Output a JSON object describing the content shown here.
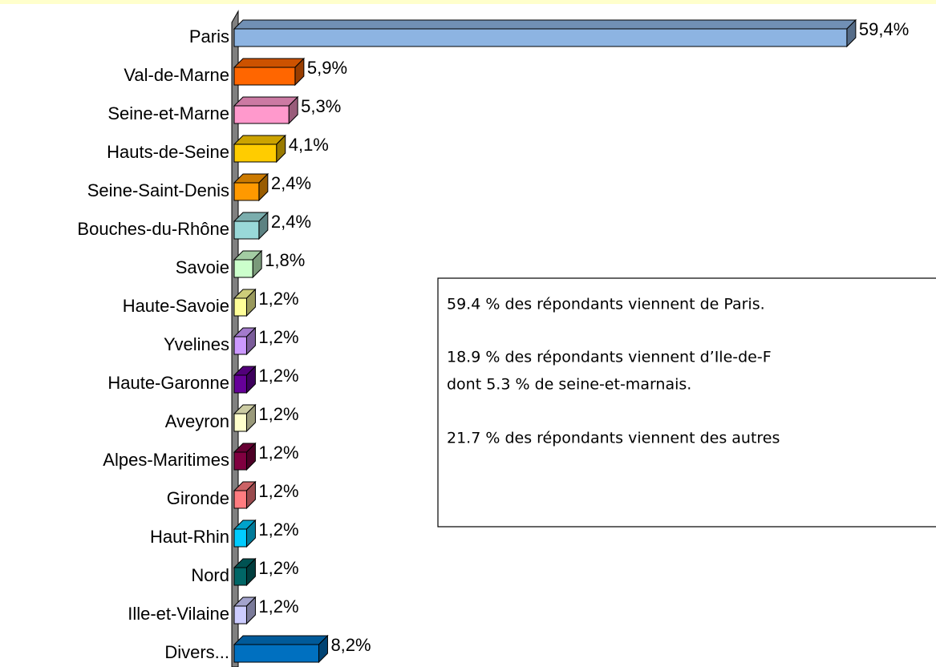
{
  "chart_data": {
    "type": "bar3d-horizontal",
    "categories": [
      "Paris",
      "Val-de-Marne",
      "Seine-et-Marne",
      "Hauts-de-Seine",
      "Seine-Saint-Denis",
      "Bouches-du-Rhône",
      "Savoie",
      "Haute-Savoie",
      "Yvelines",
      "Haute-Garonne",
      "Aveyron",
      "Alpes-Maritimes",
      "Gironde",
      "Haut-Rhin",
      "Nord",
      "Ille-et-Vilaine",
      "Divers..."
    ],
    "values": [
      59.4,
      5.9,
      5.3,
      4.1,
      2.4,
      2.4,
      1.8,
      1.2,
      1.2,
      1.2,
      1.2,
      1.2,
      1.2,
      1.2,
      1.2,
      1.2,
      8.2
    ],
    "value_labels": [
      "59,4%",
      "5,9%",
      "5,3%",
      "4,1%",
      "2,4%",
      "2,4%",
      "1,8%",
      "1,2%",
      "1,2%",
      "1,2%",
      "1,2%",
      "1,2%",
      "1,2%",
      "1,2%",
      "1,2%",
      "1,2%",
      "8,2%"
    ],
    "colors": [
      "#8db4e2",
      "#ff6600",
      "#ff99cc",
      "#ffcc00",
      "#ff9900",
      "#99d8d8",
      "#ccffcc",
      "#ffff99",
      "#cc99ff",
      "#660099",
      "#ffffcc",
      "#800040",
      "#ff7c80",
      "#00ccff",
      "#006666",
      "#ccccff",
      "#0070c0"
    ],
    "xlim": [
      0,
      60
    ],
    "annotations": [
      "59.4 % des répondants viennent de Paris.",
      "18.9 % des répondants viennent d’Ile-de-F",
      "dont 5.3 % de seine-et-marnais.",
      "21.7 % des répondants viennent des autres"
    ]
  }
}
